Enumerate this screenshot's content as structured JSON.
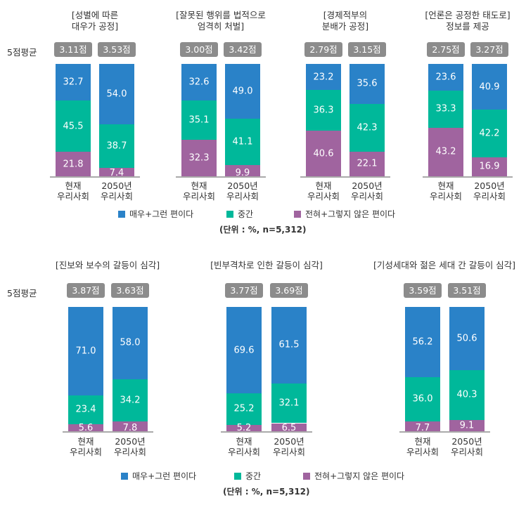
{
  "chart_data": [
    {
      "type": "bar",
      "stacked": true,
      "avg_label": "5점평균",
      "unit": "(단위 : %, n=5,312)",
      "legend": [
        "매우+그런 편이다",
        "중간",
        "전혀+그렇지 않은 편이다"
      ],
      "colors": [
        "#2a82c8",
        "#00b89a",
        "#a0649f"
      ],
      "categories": [
        "현재\n우리사회",
        "2050년\n우리사회"
      ],
      "groups": [
        {
          "title": "[성별에 따른\n대우가 공정]",
          "avg": [
            "3.11점",
            "3.53점"
          ],
          "series": [
            [
              32.7,
              54.0
            ],
            [
              45.5,
              38.7
            ],
            [
              21.8,
              7.4
            ]
          ]
        },
        {
          "title": "[잘못된 행위를 법적으로\n엄격히 처벌]",
          "avg": [
            "3.00점",
            "3.42점"
          ],
          "series": [
            [
              32.6,
              49.0
            ],
            [
              35.1,
              41.1
            ],
            [
              32.3,
              9.9
            ]
          ]
        },
        {
          "title": "[경제적부의\n분배가 공정]",
          "avg": [
            "2.79점",
            "3.15점"
          ],
          "series": [
            [
              23.2,
              35.6
            ],
            [
              36.3,
              42.3
            ],
            [
              40.6,
              22.1
            ]
          ]
        },
        {
          "title": "[언론은 공정한 태도로]\n정보를 제공",
          "avg": [
            "2.75점",
            "3.27점"
          ],
          "series": [
            [
              23.6,
              40.9
            ],
            [
              33.3,
              42.2
            ],
            [
              43.2,
              16.9
            ]
          ]
        }
      ]
    },
    {
      "type": "bar",
      "stacked": true,
      "avg_label": "5점평균",
      "unit": "(단위 : %, n=5,312)",
      "legend": [
        "매우+그런 편이다",
        "중간",
        "전혀+그렇지 않은 편이다"
      ],
      "colors": [
        "#2a82c8",
        "#00b89a",
        "#a0649f"
      ],
      "categories": [
        "현재\n우리사회",
        "2050년\n우리사회"
      ],
      "groups": [
        {
          "title": "[진보와 보수의 갈등이 심각]",
          "avg": [
            "3.87점",
            "3.63점"
          ],
          "series": [
            [
              71.0,
              58.0
            ],
            [
              23.4,
              34.2
            ],
            [
              5.6,
              7.8
            ]
          ]
        },
        {
          "title": "[빈부격차로 인한 갈등이 심각]",
          "avg": [
            "3.77점",
            "3.69점"
          ],
          "series": [
            [
              69.6,
              61.5
            ],
            [
              25.2,
              32.1
            ],
            [
              5.2,
              6.5
            ]
          ]
        },
        {
          "title": "[기성세대와 젊은 세대 간 갈등이 심각]",
          "avg": [
            "3.59점",
            "3.51점"
          ],
          "series": [
            [
              56.2,
              50.6
            ],
            [
              36.0,
              40.3
            ],
            [
              7.7,
              9.1
            ]
          ]
        }
      ]
    }
  ]
}
